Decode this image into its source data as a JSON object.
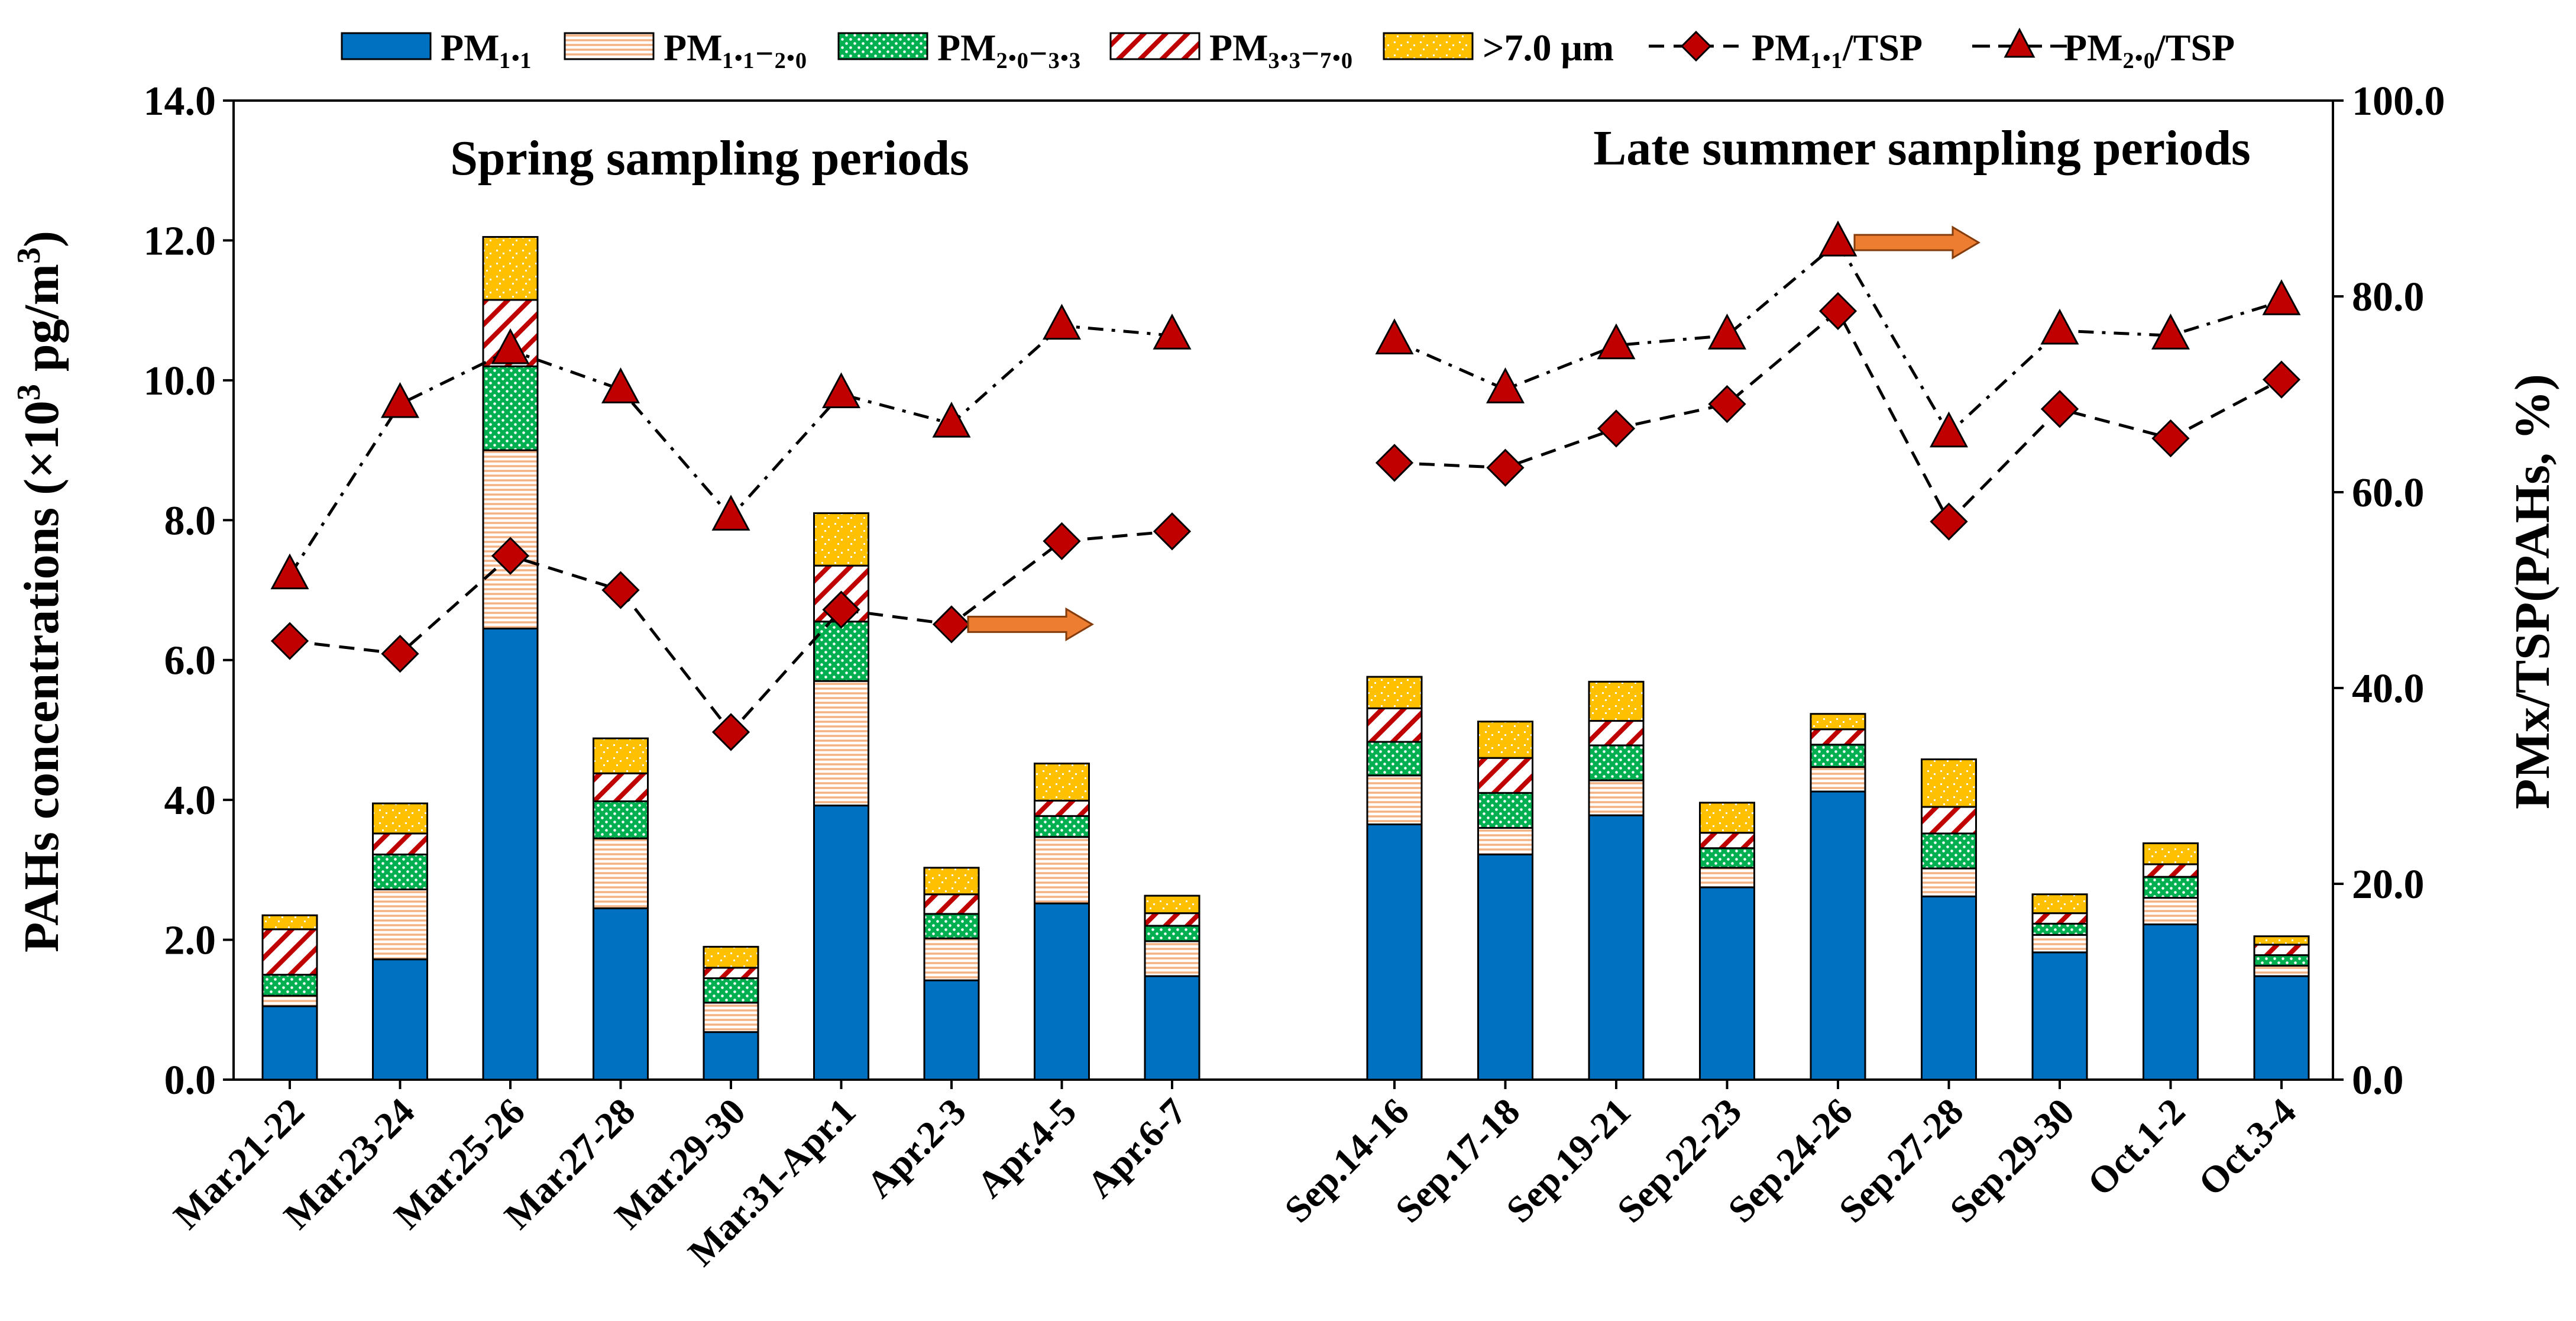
{
  "chart_data": {
    "type": "bar",
    "categories": [
      "Mar.21-22",
      "Mar.23-24",
      "Mar.25-26",
      "Mar.27-28",
      "Mar.29-30",
      "Mar.31-Apr.1",
      "Apr.2-3",
      "Apr.4-5",
      "Apr.6-7",
      "Sep.14-16",
      "Sep.17-18",
      "Sep.19-21",
      "Sep.22-23",
      "Sep.24-26",
      "Sep.27-28",
      "Sep.29-30",
      "Oct.1-2",
      "Oct.3-4"
    ],
    "groups": [
      {
        "label": "Spring  sampling periods",
        "indices": [
          0,
          1,
          2,
          3,
          4,
          5,
          6,
          7,
          8
        ]
      },
      {
        "label": "Late summer sampling periods",
        "indices": [
          9,
          10,
          11,
          12,
          13,
          14,
          15,
          16,
          17
        ]
      }
    ],
    "ylabel": "PAHs concentrations (×10³ pg/m³)",
    "ylabel_main": "PAHs concentrations (×10",
    "ylabel_sup": "3",
    "ylabel_mid": " pg/m",
    "ylabel_sup2": "3",
    "ylabel_end": ")",
    "y2label": "PMx/TSP(PAHs, %)",
    "ylim": [
      0,
      14
    ],
    "y2lim": [
      0,
      100
    ],
    "yticks": [
      "0.0",
      "2.0",
      "4.0",
      "6.0",
      "8.0",
      "10.0",
      "12.0",
      "14.0"
    ],
    "y2ticks": [
      "0.0",
      "20.0",
      "40.0",
      "60.0",
      "80.0",
      "100.0"
    ],
    "stacked_series": [
      {
        "name": "PM₁.₁",
        "color": "#0070C0",
        "pattern": "solid",
        "values": [
          1.05,
          1.72,
          6.45,
          2.45,
          0.68,
          3.92,
          1.42,
          2.52,
          1.48,
          3.65,
          3.22,
          3.78,
          2.75,
          4.12,
          2.62,
          1.82,
          2.22,
          1.48
        ]
      },
      {
        "name": "PM₁.₁₋₂.₀",
        "color": "#F4B183",
        "pattern": "hlines",
        "values": [
          0.15,
          1.0,
          2.55,
          1.0,
          0.42,
          1.78,
          0.6,
          0.95,
          0.5,
          0.7,
          0.38,
          0.5,
          0.28,
          0.35,
          0.4,
          0.25,
          0.38,
          0.15
        ]
      },
      {
        "name": "PM₂.₀₋₃.₃",
        "color": "#00B050",
        "pattern": "dots",
        "values": [
          0.3,
          0.5,
          1.2,
          0.53,
          0.35,
          0.85,
          0.35,
          0.3,
          0.22,
          0.48,
          0.5,
          0.5,
          0.28,
          0.32,
          0.5,
          0.16,
          0.3,
          0.15
        ]
      },
      {
        "name": "PM₃.₃₋₇.₀",
        "color": "#C00000",
        "pattern": "diag",
        "values": [
          0.65,
          0.3,
          0.95,
          0.4,
          0.15,
          0.8,
          0.28,
          0.22,
          0.18,
          0.48,
          0.5,
          0.35,
          0.22,
          0.22,
          0.38,
          0.15,
          0.18,
          0.15
        ]
      },
      {
        "name": ">7.0 μm",
        "color": "#FFC000",
        "pattern": "confetti",
        "values": [
          0.2,
          0.43,
          0.9,
          0.5,
          0.3,
          0.75,
          0.38,
          0.53,
          0.25,
          0.45,
          0.52,
          0.56,
          0.43,
          0.22,
          0.68,
          0.27,
          0.3,
          0.12
        ]
      }
    ],
    "line_series": [
      {
        "name": "PM₁.₁/TSP",
        "axis": "right",
        "marker": "diamond",
        "dash": "dashed",
        "color": "#C00000",
        "values": [
          44.8,
          43.5,
          53.5,
          50.0,
          35.5,
          48.0,
          46.5,
          55.0,
          56.0,
          63.0,
          62.5,
          66.5,
          69.0,
          78.5,
          57.0,
          68.5,
          65.5,
          71.5
        ]
      },
      {
        "name": "PM₂.₀/TSP",
        "axis": "right",
        "marker": "triangle",
        "dash": "dashdot",
        "color": "#C00000",
        "values": [
          51.5,
          69.0,
          74.5,
          70.5,
          57.5,
          70.0,
          67.0,
          77.0,
          76.0,
          75.5,
          70.5,
          75.0,
          76.0,
          85.5,
          66.0,
          76.5,
          76.0,
          79.5
        ]
      }
    ],
    "annotations": [
      {
        "kind": "arrow",
        "direction": "right",
        "color": "#ED7D31",
        "near": "Apr.2-3",
        "level": 46.5
      },
      {
        "kind": "arrow",
        "direction": "right",
        "color": "#ED7D31",
        "near": "Sep.24-26",
        "level": 85.5
      }
    ],
    "legend": {
      "placement": "top",
      "entries": [
        "PM₁.₁",
        "PM₁.₁₋₂.₀",
        "PM₂.₀₋₃.₃",
        "PM₃.₃₋₇.₀",
        ">7.0 μm",
        "PM₁.₁/TSP",
        "PM₂.₀/TSP"
      ]
    },
    "grid": false
  }
}
